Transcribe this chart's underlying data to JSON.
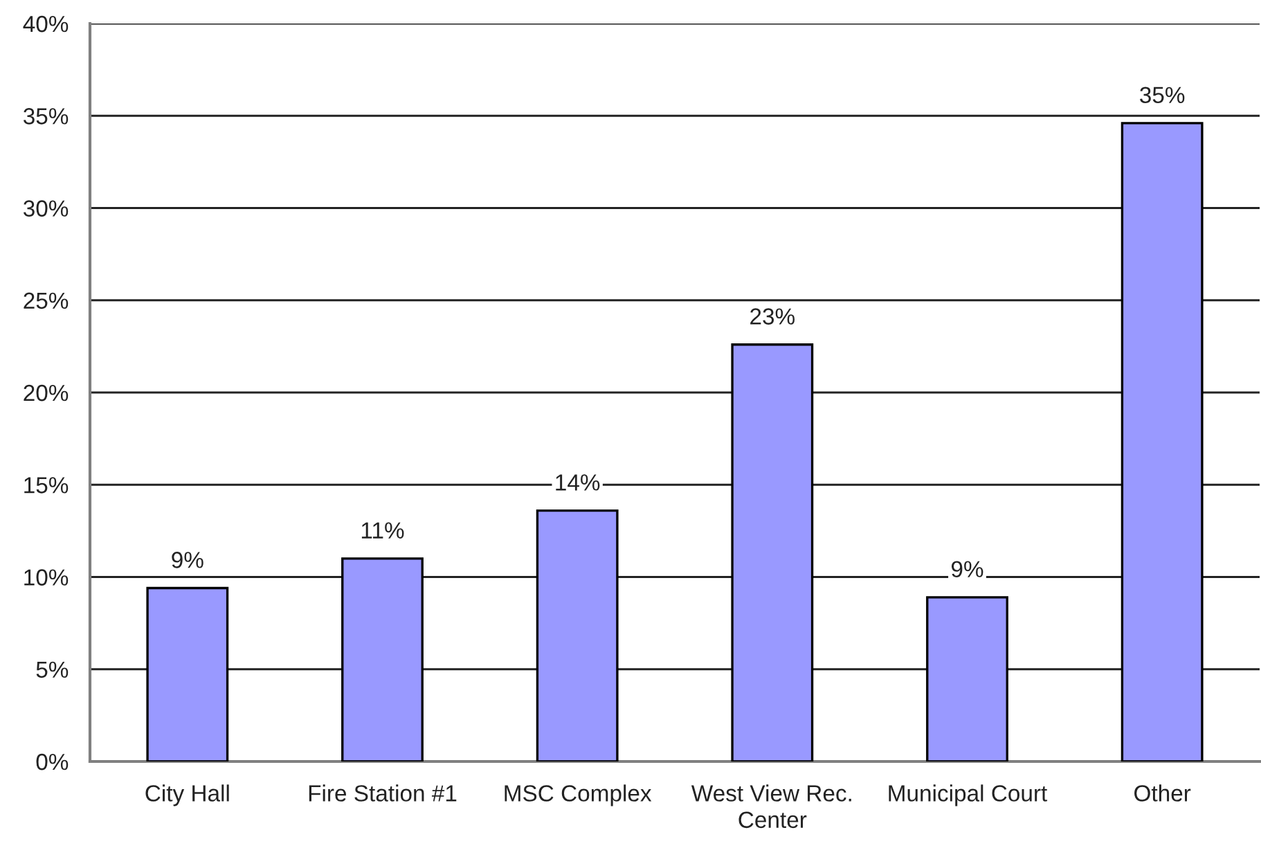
{
  "chart_data": {
    "type": "bar",
    "categories": [
      "City Hall",
      "Fire Station #1",
      "MSC Complex",
      "West View Rec. Center",
      "Municipal Court",
      "Other"
    ],
    "values": [
      9.4,
      11.0,
      13.6,
      22.6,
      8.9,
      34.6
    ],
    "value_labels": [
      "9%",
      "11%",
      "14%",
      "23%",
      "9%",
      "35%"
    ],
    "color": "#9999ff",
    "ylim": [
      0,
      40
    ],
    "yticks": [
      {
        "value": 0,
        "label": "0%"
      },
      {
        "value": 5,
        "label": "5%"
      },
      {
        "value": 10,
        "label": "10%"
      },
      {
        "value": 15,
        "label": "15%"
      },
      {
        "value": 20,
        "label": "20%"
      },
      {
        "value": 25,
        "label": "25%"
      },
      {
        "value": 30,
        "label": "30%"
      },
      {
        "value": 35,
        "label": "35%"
      },
      {
        "value": 40,
        "label": "40%"
      }
    ],
    "grid": "y"
  }
}
